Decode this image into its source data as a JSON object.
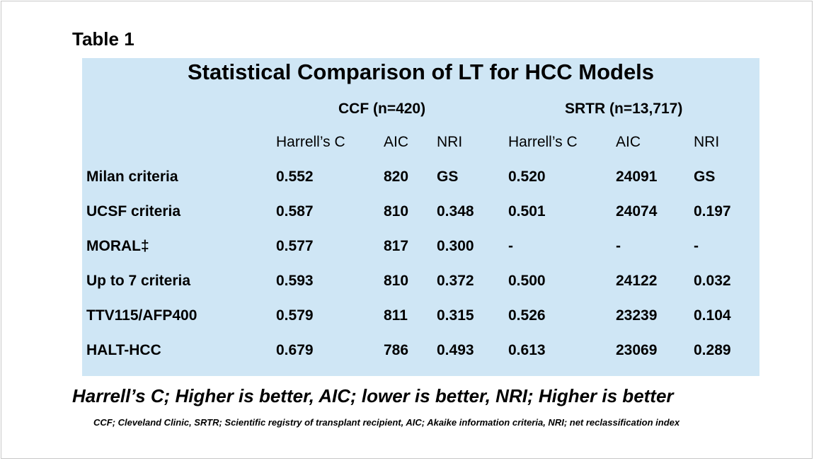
{
  "table_label": "Table 1",
  "title": "Statistical Comparison of LT for HCC Models",
  "groups": [
    {
      "label": "CCF (n=420)"
    },
    {
      "label": "SRTR (n=13,717)"
    }
  ],
  "columns": [
    "Harrell’s C",
    "AIC",
    "NRI",
    "Harrell’s C",
    "AIC",
    "NRI"
  ],
  "rows": [
    {
      "label": "Milan criteria",
      "values": [
        "0.552",
        "820",
        "GS",
        "0.520",
        "24091",
        "GS"
      ]
    },
    {
      "label": "UCSF criteria",
      "values": [
        "0.587",
        "810",
        "0.348",
        "0.501",
        "24074",
        "0.197"
      ]
    },
    {
      "label": "MORAL‡",
      "values": [
        "0.577",
        "817",
        "0.300",
        "-",
        "-",
        "-"
      ]
    },
    {
      "label": "Up to 7 criteria",
      "values": [
        "0.593",
        "810",
        "0.372",
        "0.500",
        "24122",
        "0.032"
      ]
    },
    {
      "label": "TTV115/AFP400",
      "values": [
        "0.579",
        "811",
        "0.315",
        "0.526",
        "23239",
        "0.104"
      ]
    },
    {
      "label": "HALT-HCC",
      "values": [
        "0.679",
        "786",
        "0.493",
        "0.613",
        "23069",
        "0.289"
      ]
    }
  ],
  "footer_main": "Harrell’s C; Higher is better, AIC; lower is better, NRI; Higher is better",
  "footer_note": "CCF; Cleveland Clinic, SRTR; Scientific registry of transplant recipient, AIC; Akaike information criteria, NRI; net reclassification index",
  "colors": {
    "panel": "#cfe6f5",
    "text": "#000000"
  }
}
